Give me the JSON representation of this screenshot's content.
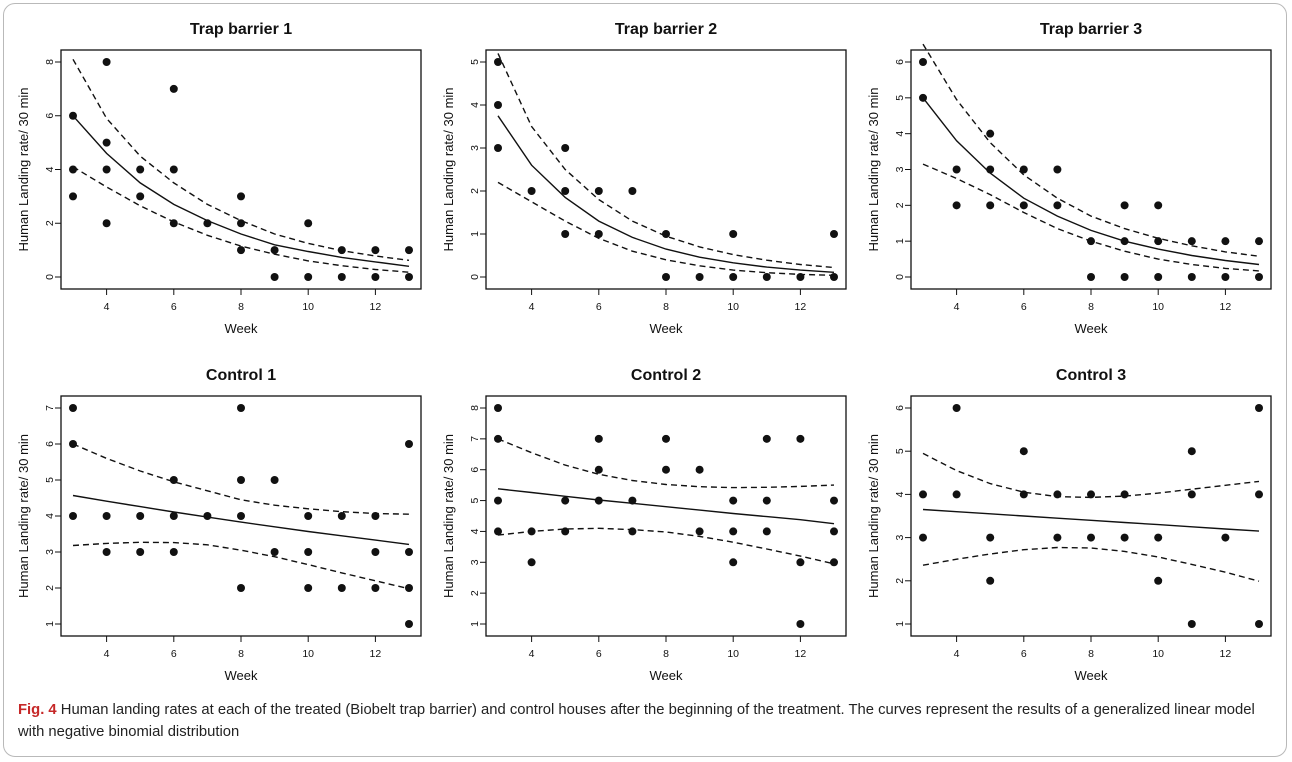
{
  "caption": {
    "label": "Fig. 4",
    "text": " Human landing rates at each of the treated (Biobelt trap barrier) and control houses after the beginning of the treatment. The curves represent the results of a generalized linear model with negative binomial distribution"
  },
  "chart_data": [
    {
      "type": "scatter",
      "title": "Trap barrier 1",
      "xlabel": "Week",
      "ylabel": "Human Landing rate/ 30 min",
      "xlim": [
        3,
        13
      ],
      "ylim": [
        0,
        8
      ],
      "xticks": [
        4,
        6,
        8,
        10,
        12
      ],
      "yticks": [
        0,
        2,
        4,
        6,
        8
      ],
      "points": [
        [
          3,
          3
        ],
        [
          3,
          4
        ],
        [
          3,
          6
        ],
        [
          4,
          2
        ],
        [
          4,
          4
        ],
        [
          4,
          5
        ],
        [
          4,
          8
        ],
        [
          5,
          3
        ],
        [
          5,
          4
        ],
        [
          6,
          2
        ],
        [
          6,
          4
        ],
        [
          6,
          7
        ],
        [
          7,
          2
        ],
        [
          8,
          1
        ],
        [
          8,
          2
        ],
        [
          8,
          3
        ],
        [
          9,
          0
        ],
        [
          9,
          1
        ],
        [
          10,
          0
        ],
        [
          10,
          2
        ],
        [
          11,
          0
        ],
        [
          11,
          1
        ],
        [
          12,
          0
        ],
        [
          12,
          1
        ],
        [
          13,
          0
        ],
        [
          13,
          1
        ]
      ],
      "fit": {
        "x": [
          3,
          4,
          5,
          6,
          7,
          8,
          9,
          10,
          11,
          12,
          13
        ],
        "y": [
          6.0,
          4.6,
          3.5,
          2.7,
          2.1,
          1.6,
          1.2,
          0.95,
          0.73,
          0.56,
          0.4
        ]
      },
      "ci_upper": {
        "x": [
          3,
          4,
          5,
          6,
          7,
          8,
          9,
          10,
          11,
          12,
          13
        ],
        "y": [
          8.1,
          5.9,
          4.5,
          3.5,
          2.7,
          2.1,
          1.6,
          1.25,
          0.98,
          0.78,
          0.62
        ]
      },
      "ci_lower": {
        "x": [
          3,
          4,
          5,
          6,
          7,
          8,
          9,
          10,
          11,
          12,
          13
        ],
        "y": [
          4.1,
          3.35,
          2.65,
          2.05,
          1.55,
          1.15,
          0.85,
          0.6,
          0.42,
          0.28,
          0.18
        ]
      },
      "grid": false
    },
    {
      "type": "scatter",
      "title": "Trap barrier 2",
      "xlabel": "Week",
      "ylabel": "Human Landing rate/ 30 min",
      "xlim": [
        3,
        13
      ],
      "ylim": [
        0,
        5
      ],
      "xticks": [
        4,
        6,
        8,
        10,
        12
      ],
      "yticks": [
        0,
        1,
        2,
        3,
        4,
        5
      ],
      "points": [
        [
          3,
          3
        ],
        [
          3,
          4
        ],
        [
          3,
          5
        ],
        [
          4,
          2
        ],
        [
          5,
          1
        ],
        [
          5,
          2
        ],
        [
          5,
          3
        ],
        [
          6,
          1
        ],
        [
          6,
          2
        ],
        [
          7,
          2
        ],
        [
          8,
          0
        ],
        [
          8,
          1
        ],
        [
          9,
          0
        ],
        [
          10,
          0
        ],
        [
          10,
          1
        ],
        [
          11,
          0
        ],
        [
          12,
          0
        ],
        [
          13,
          0
        ],
        [
          13,
          1
        ]
      ],
      "fit": {
        "x": [
          3,
          4,
          5,
          6,
          7,
          8,
          9,
          10,
          11,
          12,
          13
        ],
        "y": [
          3.75,
          2.6,
          1.85,
          1.3,
          0.92,
          0.65,
          0.46,
          0.33,
          0.23,
          0.16,
          0.11
        ]
      },
      "ci_upper": {
        "x": [
          3,
          4,
          5,
          6,
          7,
          8,
          9,
          10,
          11,
          12,
          13
        ],
        "y": [
          5.2,
          3.5,
          2.5,
          1.8,
          1.3,
          0.95,
          0.7,
          0.52,
          0.39,
          0.29,
          0.22
        ]
      },
      "ci_lower": {
        "x": [
          3,
          4,
          5,
          6,
          7,
          8,
          9,
          10,
          11,
          12,
          13
        ],
        "y": [
          2.2,
          1.75,
          1.3,
          0.9,
          0.6,
          0.4,
          0.26,
          0.16,
          0.1,
          0.06,
          0.04
        ]
      },
      "grid": false
    },
    {
      "type": "scatter",
      "title": "Trap barrier 3",
      "xlabel": "Week",
      "ylabel": "Human Landing rate/ 30 min",
      "xlim": [
        3,
        13
      ],
      "ylim": [
        0,
        6
      ],
      "xticks": [
        4,
        6,
        8,
        10,
        12
      ],
      "yticks": [
        0,
        1,
        2,
        3,
        4,
        5,
        6
      ],
      "points": [
        [
          3,
          5
        ],
        [
          3,
          6
        ],
        [
          4,
          2
        ],
        [
          4,
          3
        ],
        [
          5,
          2
        ],
        [
          5,
          3
        ],
        [
          5,
          4
        ],
        [
          6,
          2
        ],
        [
          6,
          3
        ],
        [
          7,
          2
        ],
        [
          7,
          3
        ],
        [
          8,
          0
        ],
        [
          8,
          1
        ],
        [
          9,
          0
        ],
        [
          9,
          1
        ],
        [
          9,
          2
        ],
        [
          10,
          0
        ],
        [
          10,
          1
        ],
        [
          10,
          2
        ],
        [
          11,
          0
        ],
        [
          11,
          1
        ],
        [
          12,
          0
        ],
        [
          12,
          1
        ],
        [
          13,
          0
        ],
        [
          13,
          1
        ]
      ],
      "fit": {
        "x": [
          3,
          4,
          5,
          6,
          7,
          8,
          9,
          10,
          11,
          12,
          13
        ],
        "y": [
          5.0,
          3.8,
          2.9,
          2.2,
          1.7,
          1.3,
          1.0,
          0.78,
          0.6,
          0.46,
          0.35
        ]
      },
      "ci_upper": {
        "x": [
          3,
          4,
          5,
          6,
          7,
          8,
          9,
          10,
          11,
          12,
          13
        ],
        "y": [
          6.5,
          4.95,
          3.75,
          2.85,
          2.2,
          1.7,
          1.35,
          1.08,
          0.87,
          0.7,
          0.58
        ]
      },
      "ci_lower": {
        "x": [
          3,
          4,
          5,
          6,
          7,
          8,
          9,
          10,
          11,
          12,
          13
        ],
        "y": [
          3.15,
          2.75,
          2.3,
          1.8,
          1.35,
          1.0,
          0.72,
          0.5,
          0.35,
          0.24,
          0.17
        ]
      },
      "grid": false
    },
    {
      "type": "scatter",
      "title": "Control 1",
      "xlabel": "Week",
      "ylabel": "Human Landing rate/ 30 min",
      "xlim": [
        3,
        13
      ],
      "ylim": [
        1,
        7
      ],
      "xticks": [
        4,
        6,
        8,
        10,
        12
      ],
      "yticks": [
        1,
        2,
        3,
        4,
        5,
        6,
        7
      ],
      "points": [
        [
          3,
          4
        ],
        [
          3,
          6
        ],
        [
          3,
          7
        ],
        [
          4,
          3
        ],
        [
          4,
          4
        ],
        [
          5,
          3
        ],
        [
          5,
          4
        ],
        [
          6,
          3
        ],
        [
          6,
          4
        ],
        [
          6,
          5
        ],
        [
          7,
          4
        ],
        [
          8,
          2
        ],
        [
          8,
          4
        ],
        [
          8,
          5
        ],
        [
          8,
          7
        ],
        [
          9,
          3
        ],
        [
          9,
          5
        ],
        [
          10,
          2
        ],
        [
          10,
          3
        ],
        [
          10,
          4
        ],
        [
          11,
          2
        ],
        [
          11,
          4
        ],
        [
          12,
          2
        ],
        [
          12,
          3
        ],
        [
          12,
          4
        ],
        [
          13,
          1
        ],
        [
          13,
          2
        ],
        [
          13,
          3
        ],
        [
          13,
          6
        ]
      ],
      "fit": {
        "x": [
          3,
          4,
          5,
          6,
          7,
          8,
          9,
          10,
          11,
          12,
          13
        ],
        "y": [
          4.57,
          4.41,
          4.26,
          4.11,
          3.97,
          3.83,
          3.7,
          3.57,
          3.45,
          3.33,
          3.21
        ]
      },
      "ci_upper": {
        "x": [
          3,
          4,
          5,
          6,
          7,
          8,
          9,
          10,
          11,
          12,
          13
        ],
        "y": [
          6.0,
          5.6,
          5.25,
          4.95,
          4.7,
          4.45,
          4.3,
          4.2,
          4.12,
          4.07,
          4.05
        ]
      },
      "ci_lower": {
        "x": [
          3,
          4,
          5,
          6,
          7,
          8,
          9,
          10,
          11,
          12,
          13
        ],
        "y": [
          3.18,
          3.24,
          3.27,
          3.26,
          3.2,
          3.05,
          2.87,
          2.65,
          2.42,
          2.2,
          1.98
        ]
      },
      "grid": false
    },
    {
      "type": "scatter",
      "title": "Control 2",
      "xlabel": "Week",
      "ylabel": "Human Landing rate/ 30 min",
      "xlim": [
        3,
        13
      ],
      "ylim": [
        1,
        8
      ],
      "xticks": [
        4,
        6,
        8,
        10,
        12
      ],
      "yticks": [
        1,
        2,
        3,
        4,
        5,
        6,
        7,
        8
      ],
      "points": [
        [
          3,
          4
        ],
        [
          3,
          5
        ],
        [
          3,
          7
        ],
        [
          3,
          8
        ],
        [
          4,
          3
        ],
        [
          4,
          4
        ],
        [
          5,
          4
        ],
        [
          5,
          5
        ],
        [
          6,
          5
        ],
        [
          6,
          6
        ],
        [
          6,
          7
        ],
        [
          7,
          4
        ],
        [
          7,
          5
        ],
        [
          8,
          6
        ],
        [
          8,
          7
        ],
        [
          9,
          4
        ],
        [
          9,
          6
        ],
        [
          10,
          3
        ],
        [
          10,
          4
        ],
        [
          10,
          5
        ],
        [
          11,
          4
        ],
        [
          11,
          5
        ],
        [
          11,
          7
        ],
        [
          12,
          1
        ],
        [
          12,
          3
        ],
        [
          12,
          7
        ],
        [
          13,
          3
        ],
        [
          13,
          4
        ],
        [
          13,
          5
        ]
      ],
      "fit": {
        "x": [
          3,
          4,
          5,
          6,
          7,
          8,
          9,
          10,
          11,
          12,
          13
        ],
        "y": [
          5.38,
          5.26,
          5.14,
          5.02,
          4.91,
          4.8,
          4.69,
          4.58,
          4.48,
          4.38,
          4.25
        ]
      },
      "ci_upper": {
        "x": [
          3,
          4,
          5,
          6,
          7,
          8,
          9,
          10,
          11,
          12,
          13
        ],
        "y": [
          7.0,
          6.55,
          6.15,
          5.85,
          5.65,
          5.52,
          5.45,
          5.42,
          5.43,
          5.46,
          5.5
        ]
      },
      "ci_lower": {
        "x": [
          3,
          4,
          5,
          6,
          7,
          8,
          9,
          10,
          11,
          12,
          13
        ],
        "y": [
          3.88,
          4.0,
          4.08,
          4.1,
          4.06,
          3.98,
          3.84,
          3.65,
          3.43,
          3.2,
          2.95
        ]
      },
      "grid": false
    },
    {
      "type": "scatter",
      "title": "Control 3",
      "xlabel": "Week",
      "ylabel": "Human Landing rate/ 30 min",
      "xlim": [
        3,
        13
      ],
      "ylim": [
        1,
        6
      ],
      "xticks": [
        4,
        6,
        8,
        10,
        12
      ],
      "yticks": [
        1,
        2,
        3,
        4,
        5,
        6
      ],
      "points": [
        [
          3,
          3
        ],
        [
          3,
          4
        ],
        [
          4,
          4
        ],
        [
          4,
          6
        ],
        [
          5,
          2
        ],
        [
          5,
          3
        ],
        [
          6,
          4
        ],
        [
          6,
          5
        ],
        [
          7,
          3
        ],
        [
          7,
          4
        ],
        [
          8,
          3
        ],
        [
          8,
          4
        ],
        [
          9,
          3
        ],
        [
          9,
          4
        ],
        [
          10,
          2
        ],
        [
          10,
          3
        ],
        [
          11,
          1
        ],
        [
          11,
          4
        ],
        [
          11,
          5
        ],
        [
          12,
          3
        ],
        [
          13,
          1
        ],
        [
          13,
          4
        ],
        [
          13,
          6
        ]
      ],
      "fit": {
        "x": [
          3,
          4,
          5,
          6,
          7,
          8,
          9,
          10,
          11,
          12,
          13
        ],
        "y": [
          3.65,
          3.6,
          3.55,
          3.5,
          3.45,
          3.4,
          3.35,
          3.3,
          3.25,
          3.2,
          3.15
        ]
      },
      "ci_upper": {
        "x": [
          3,
          4,
          5,
          6,
          7,
          8,
          9,
          10,
          11,
          12,
          13
        ],
        "y": [
          4.95,
          4.55,
          4.25,
          4.05,
          3.95,
          3.93,
          3.96,
          4.03,
          4.12,
          4.21,
          4.3
        ]
      },
      "ci_lower": {
        "x": [
          3,
          4,
          5,
          6,
          7,
          8,
          9,
          10,
          11,
          12,
          13
        ],
        "y": [
          2.36,
          2.5,
          2.62,
          2.72,
          2.77,
          2.76,
          2.68,
          2.55,
          2.38,
          2.2,
          1.99
        ]
      },
      "grid": false
    }
  ]
}
